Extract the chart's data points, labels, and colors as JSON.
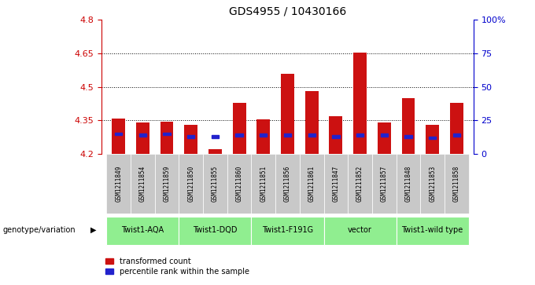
{
  "title": "GDS4955 / 10430166",
  "samples": [
    "GSM1211849",
    "GSM1211854",
    "GSM1211859",
    "GSM1211850",
    "GSM1211855",
    "GSM1211860",
    "GSM1211851",
    "GSM1211856",
    "GSM1211861",
    "GSM1211847",
    "GSM1211852",
    "GSM1211857",
    "GSM1211848",
    "GSM1211853",
    "GSM1211858"
  ],
  "red_values": [
    4.36,
    4.34,
    4.345,
    4.33,
    4.22,
    4.43,
    4.355,
    4.56,
    4.48,
    4.37,
    4.655,
    4.34,
    4.45,
    4.33,
    4.43
  ],
  "blue_pct": [
    15,
    14,
    15,
    13,
    13,
    14,
    14,
    14,
    14,
    13,
    14,
    14,
    13,
    12,
    14
  ],
  "ymin": 4.2,
  "ymax": 4.8,
  "yticks_left": [
    4.2,
    4.35,
    4.5,
    4.65,
    4.8
  ],
  "right_yticks_pct": [
    0,
    25,
    50,
    75,
    100
  ],
  "right_ytick_labels": [
    "0",
    "25",
    "50",
    "75",
    "100%"
  ],
  "hlines": [
    4.35,
    4.5,
    4.65
  ],
  "groups": [
    {
      "label": "Twist1-AQA",
      "start": 0,
      "end": 3
    },
    {
      "label": "Twist1-DQD",
      "start": 3,
      "end": 6
    },
    {
      "label": "Twist1-F191G",
      "start": 6,
      "end": 9
    },
    {
      "label": "vector",
      "start": 9,
      "end": 12
    },
    {
      "label": "Twist1-wild type",
      "start": 12,
      "end": 15
    }
  ],
  "group_color": "#90ee90",
  "bar_color": "#cc1111",
  "blue_color": "#2222cc",
  "sample_box_color": "#c8c8c8",
  "left_axis_color": "#cc0000",
  "right_axis_color": "#0000cc",
  "bar_width": 0.55,
  "legend_labels": [
    "transformed count",
    "percentile rank within the sample"
  ]
}
